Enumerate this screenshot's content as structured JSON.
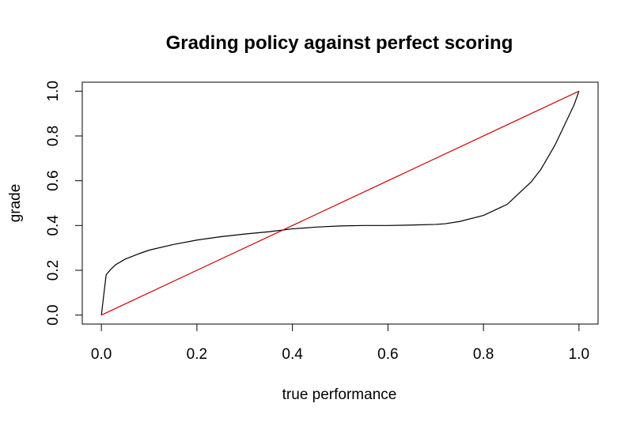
{
  "chart_data": {
    "type": "line",
    "title": "Grading policy against perfect scoring",
    "xlabel": "true performance",
    "ylabel": "grade",
    "xlim": [
      -0.04,
      1.04
    ],
    "ylim": [
      -0.04,
      1.04
    ],
    "x_ticks": [
      "0.0",
      "0.2",
      "0.4",
      "0.6",
      "0.8",
      "1.0"
    ],
    "y_ticks": [
      "0.0",
      "0.2",
      "0.4",
      "0.6",
      "0.8",
      "1.0"
    ],
    "x_tick_values": [
      0,
      0.2,
      0.4,
      0.6,
      0.8,
      1.0
    ],
    "y_tick_values": [
      0,
      0.2,
      0.4,
      0.6,
      0.8,
      1.0
    ],
    "grid": false,
    "series": [
      {
        "color": "#000000",
        "x": [
          0.0,
          0.01,
          0.02,
          0.03,
          0.05,
          0.08,
          0.1,
          0.15,
          0.2,
          0.25,
          0.3,
          0.35,
          0.4,
          0.45,
          0.5,
          0.55,
          0.6,
          0.65,
          0.7,
          0.72,
          0.75,
          0.8,
          0.85,
          0.9,
          0.92,
          0.95,
          0.97,
          0.99,
          1.0
        ],
        "y": [
          0.0,
          0.18,
          0.205,
          0.225,
          0.25,
          0.275,
          0.29,
          0.315,
          0.335,
          0.35,
          0.362,
          0.372,
          0.385,
          0.393,
          0.398,
          0.4,
          0.4,
          0.402,
          0.405,
          0.408,
          0.418,
          0.445,
          0.495,
          0.595,
          0.65,
          0.76,
          0.85,
          0.94,
          1.0
        ]
      },
      {
        "color": "#cc0000",
        "x": [
          0.0,
          1.0
        ],
        "y": [
          0.0,
          1.0
        ]
      }
    ]
  }
}
